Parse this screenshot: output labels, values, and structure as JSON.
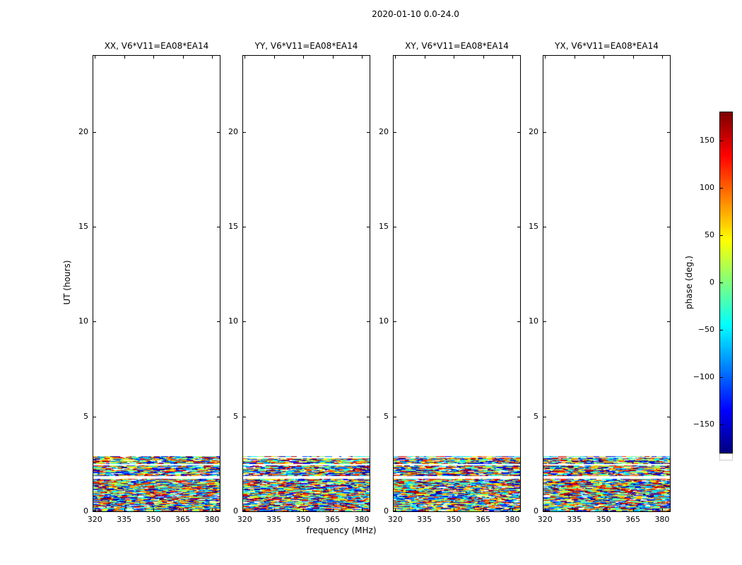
{
  "figure": {
    "title": "2020-01-10 0.0-24.0",
    "background": "#ffffff"
  },
  "axes": {
    "xlabel": "frequency (MHz)",
    "ylabel": "UT (hours)",
    "x_ticks": [
      320,
      335,
      350,
      365,
      380
    ],
    "y_ticks": [
      0,
      5,
      10,
      15,
      20
    ],
    "xlim": [
      319.2,
      384
    ],
    "ylim": [
      0,
      24
    ]
  },
  "panels": [
    {
      "pol": "XX",
      "title": "XX, V6*V11=EA08*EA14"
    },
    {
      "pol": "YY",
      "title": "YY, V6*V11=EA08*EA14"
    },
    {
      "pol": "XY",
      "title": "XY, V6*V11=EA08*EA14"
    },
    {
      "pol": "YX",
      "title": "YX, V6*V11=EA08*EA14"
    }
  ],
  "colorbar": {
    "label": "phase (deg.)",
    "ticks": [
      -150,
      -100,
      -50,
      0,
      50,
      100,
      150
    ],
    "vmin": -180,
    "vmax": 180,
    "colormap": "jet",
    "stops": [
      [
        0.0,
        [
          0,
          0,
          127
        ]
      ],
      [
        0.125,
        [
          0,
          0,
          255
        ]
      ],
      [
        0.375,
        [
          0,
          255,
          255
        ]
      ],
      [
        0.625,
        [
          255,
          255,
          0
        ]
      ],
      [
        0.875,
        [
          255,
          0,
          0
        ]
      ],
      [
        1.0,
        [
          127,
          0,
          0
        ]
      ]
    ]
  },
  "chart_data": {
    "type": "heatmap",
    "title": "2020-01-10 0.0-24.0",
    "xlabel": "frequency (MHz)",
    "ylabel": "UT (hours)",
    "value_label": "phase (deg.)",
    "value_range": [
      -180,
      180
    ],
    "xlim": [
      319.2,
      384
    ],
    "ylim": [
      0,
      24
    ],
    "x_ticks": [
      320,
      335,
      350,
      365,
      380
    ],
    "y_ticks": [
      0,
      5,
      10,
      15,
      20
    ],
    "colorbar_ticks": [
      -150,
      -100,
      -50,
      0,
      50,
      100,
      150
    ],
    "panels": [
      "XX, V6*V11=EA08*EA14",
      "YY, V6*V11=EA08*EA14",
      "XY, V6*V11=EA08*EA14",
      "YX, V6*V11=EA08*EA14"
    ],
    "data_region": {
      "ut_min": 0.0,
      "ut_max": 2.9,
      "freq_min": 320,
      "freq_max": 383,
      "description": "Noise-like phase values spanning the full -180 to +180 deg range, appearing as short horizontal multicolor streaks; the remainder of the 0-24 h range is empty white"
    },
    "white_gaps_ut": [
      [
        1.72,
        1.88
      ],
      [
        2.42,
        2.52
      ]
    ],
    "white_run_fraction": 0.07,
    "noise_seed": 42
  }
}
